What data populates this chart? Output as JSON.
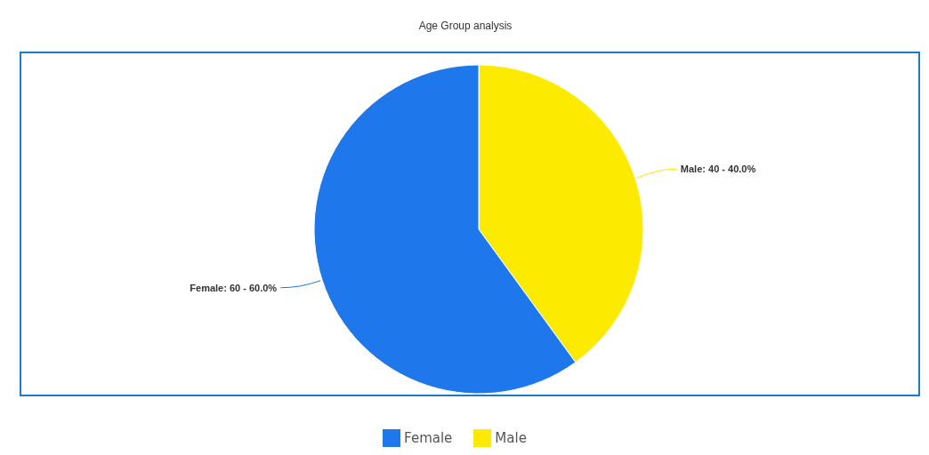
{
  "chart_data": {
    "type": "pie",
    "title": "Age Group analysis",
    "categories": [
      "Male",
      "Female"
    ],
    "values": [
      40,
      60
    ],
    "colors": [
      "#fcea00",
      "#1e78ec"
    ],
    "value_labels": [
      "Male: 40 - 40.0%",
      "Female: 60 - 60.0%"
    ],
    "legend": "bottom"
  }
}
